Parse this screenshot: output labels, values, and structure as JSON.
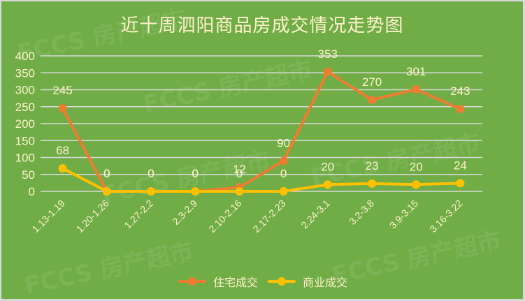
{
  "title": "近十周泗阳商品房成交情况走势图",
  "watermark": "FCCS 房产超市",
  "colors": {
    "background": "#70ad47",
    "text": "#fff2cc",
    "gridline": "#d9d9d9",
    "residential": "#ed7d31",
    "commercial": "#ffc000"
  },
  "legend": {
    "items": [
      {
        "label": "住宅成交",
        "color": "#ed7d31"
      },
      {
        "label": "商业成交",
        "color": "#ffc000"
      }
    ]
  },
  "chart_data": {
    "type": "line",
    "title": "近十周泗阳商品房成交情况走势图",
    "xlabel": "",
    "ylabel": "",
    "categories": [
      "1.13-1.19",
      "1.20-1.26",
      "1.27-2.2",
      "2.3-2.9",
      "2.10-2.16",
      "2.17-2.23",
      "2.24-3.1",
      "3.2-3.8",
      "3.9-3.15",
      "3.16-3.22"
    ],
    "series": [
      {
        "name": "住宅成交",
        "color": "#ed7d31",
        "values": [
          245,
          0,
          0,
          0,
          12,
          90,
          353,
          270,
          301,
          243
        ]
      },
      {
        "name": "商业成交",
        "color": "#ffc000",
        "values": [
          68,
          0,
          0,
          0,
          0,
          0,
          20,
          23,
          20,
          24
        ]
      }
    ],
    "ylim": [
      0,
      400
    ],
    "yticks": [
      0,
      50,
      100,
      150,
      200,
      250,
      300,
      350,
      400
    ],
    "grid": true,
    "legend_position": "bottom",
    "data_labels": true
  }
}
